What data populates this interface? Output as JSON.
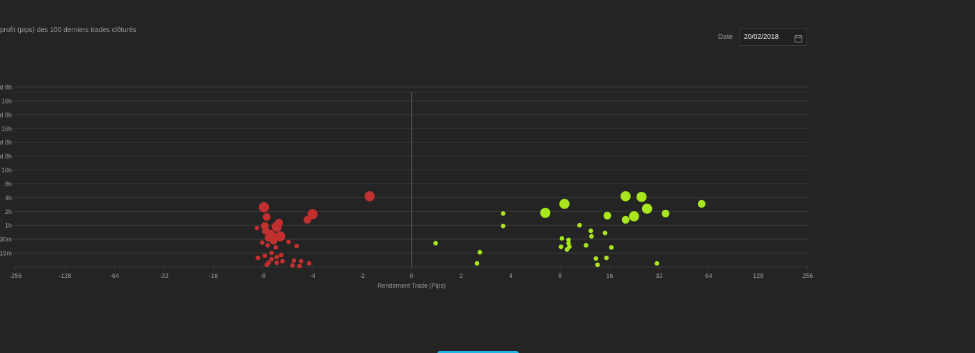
{
  "header": {
    "title": "profit (pips) des 100 derniers trades clôturés",
    "date_label": "Date",
    "date_value": "20/02/2018"
  },
  "colors": {
    "background": "#242424",
    "grid": "#3a3a3a",
    "zero_line": "#4a4a4a",
    "axis_text": "#9a9a9a",
    "loss": "#c0302f",
    "profit": "#a8e61d"
  },
  "icons": {
    "date_button": "calendar-icon"
  },
  "chart_data": {
    "type": "scatter",
    "title": "profit (pips) des 100 derniers trades clôturés",
    "xlabel": "Rendement Trade (Pips)",
    "ylabel": "",
    "x_scale": "symmetric-log2",
    "x_ticks": [
      -256,
      -128,
      -64,
      -32,
      -16,
      -8,
      -4,
      -2,
      0,
      2,
      4,
      8,
      16,
      32,
      64,
      128,
      256
    ],
    "xlim": [
      -256,
      256
    ],
    "y_ticks": [
      "15m",
      "30m",
      "1h",
      "2h",
      "4h",
      "8h",
      "16h",
      "d 8h",
      "d 8h",
      "16h",
      "d 8h",
      "16h",
      "d 8h"
    ],
    "y_scale": "log (duration)",
    "ylim": [
      0,
      12.6
    ],
    "grid": true,
    "legend": "none",
    "size_encoding": "bubble size",
    "series": [
      {
        "color": "#c0302f",
        "points": [
          {
            "x": -1.8,
            "y": 5.1,
            "size": 3
          },
          {
            "x": -7.9,
            "y": 4.3,
            "size": 3
          },
          {
            "x": -4,
            "y": 3.8,
            "size": 3
          },
          {
            "x": -7.6,
            "y": 3.6,
            "size": 2
          },
          {
            "x": -4.3,
            "y": 3.4,
            "size": 2
          },
          {
            "x": -6.4,
            "y": 3.2,
            "size": 2
          },
          {
            "x": -6.6,
            "y": 2.9,
            "size": 3
          },
          {
            "x": -7.8,
            "y": 2.95,
            "size": 2
          },
          {
            "x": -8.7,
            "y": 2.8,
            "size": 1
          },
          {
            "x": -7.7,
            "y": 2.6,
            "size": 2
          },
          {
            "x": -7.2,
            "y": 2.4,
            "size": 2
          },
          {
            "x": -6.8,
            "y": 2.3,
            "size": 1
          },
          {
            "x": -6.3,
            "y": 2.2,
            "size": 3
          },
          {
            "x": -7.4,
            "y": 2.1,
            "size": 2
          },
          {
            "x": -6.9,
            "y": 1.9,
            "size": 2
          },
          {
            "x": -8.1,
            "y": 1.75,
            "size": 1
          },
          {
            "x": -5.6,
            "y": 1.8,
            "size": 1
          },
          {
            "x": -7.5,
            "y": 1.55,
            "size": 1
          },
          {
            "x": -6.7,
            "y": 1.4,
            "size": 1
          },
          {
            "x": -5,
            "y": 1.5,
            "size": 1
          },
          {
            "x": -7.1,
            "y": 1,
            "size": 1
          },
          {
            "x": -6.2,
            "y": 0.85,
            "size": 1
          },
          {
            "x": -7.8,
            "y": 0.8,
            "size": 1
          },
          {
            "x": -8.6,
            "y": 0.65,
            "size": 1
          },
          {
            "x": -6.6,
            "y": 0.7,
            "size": 1
          },
          {
            "x": -7.1,
            "y": 0.55,
            "size": 1
          },
          {
            "x": -6.1,
            "y": 0.4,
            "size": 1
          },
          {
            "x": -5.2,
            "y": 0.45,
            "size": 1
          },
          {
            "x": -4.7,
            "y": 0.4,
            "size": 1
          },
          {
            "x": -7.4,
            "y": 0.3,
            "size": 1
          },
          {
            "x": -6.6,
            "y": 0.3,
            "size": 1
          },
          {
            "x": -4.2,
            "y": 0.25,
            "size": 1
          },
          {
            "x": -7.6,
            "y": 0.15,
            "size": 1
          },
          {
            "x": -5.3,
            "y": 0.1,
            "size": 1
          },
          {
            "x": -4.8,
            "y": 0.05,
            "size": 1
          }
        ]
      },
      {
        "color": "#a8e61d",
        "points": [
          {
            "x": 20,
            "y": 5.1,
            "size": 3
          },
          {
            "x": 25,
            "y": 5.05,
            "size": 3
          },
          {
            "x": 8.5,
            "y": 4.55,
            "size": 3
          },
          {
            "x": 58,
            "y": 4.55,
            "size": 2
          },
          {
            "x": 27,
            "y": 4.2,
            "size": 3
          },
          {
            "x": 6.5,
            "y": 3.9,
            "size": 3
          },
          {
            "x": 35,
            "y": 3.85,
            "size": 2
          },
          {
            "x": 15.5,
            "y": 3.7,
            "size": 2
          },
          {
            "x": 22.5,
            "y": 3.65,
            "size": 3
          },
          {
            "x": 20,
            "y": 3.4,
            "size": 2
          },
          {
            "x": 3.6,
            "y": 3.85,
            "size": 1
          },
          {
            "x": 3.6,
            "y": 2.95,
            "size": 1
          },
          {
            "x": 10.5,
            "y": 3,
            "size": 1
          },
          {
            "x": 12.3,
            "y": 2.6,
            "size": 1
          },
          {
            "x": 15,
            "y": 2.45,
            "size": 1
          },
          {
            "x": 12.4,
            "y": 2.2,
            "size": 1
          },
          {
            "x": 8.2,
            "y": 2.05,
            "size": 1
          },
          {
            "x": 9,
            "y": 1.95,
            "size": 1
          },
          {
            "x": 9,
            "y": 1.7,
            "size": 1
          },
          {
            "x": 1.4,
            "y": 1.7,
            "size": 1
          },
          {
            "x": 8.1,
            "y": 1.45,
            "size": 1
          },
          {
            "x": 11.5,
            "y": 1.55,
            "size": 1
          },
          {
            "x": 9.1,
            "y": 1.45,
            "size": 1
          },
          {
            "x": 8.8,
            "y": 1.25,
            "size": 1
          },
          {
            "x": 16.4,
            "y": 1.4,
            "size": 1
          },
          {
            "x": 2.6,
            "y": 1.05,
            "size": 1
          },
          {
            "x": 13.2,
            "y": 0.6,
            "size": 1
          },
          {
            "x": 15.3,
            "y": 0.65,
            "size": 1
          },
          {
            "x": 2.5,
            "y": 0.25,
            "size": 1
          },
          {
            "x": 13.5,
            "y": 0.15,
            "size": 1
          },
          {
            "x": 31,
            "y": 0.25,
            "size": 1
          }
        ]
      }
    ]
  }
}
